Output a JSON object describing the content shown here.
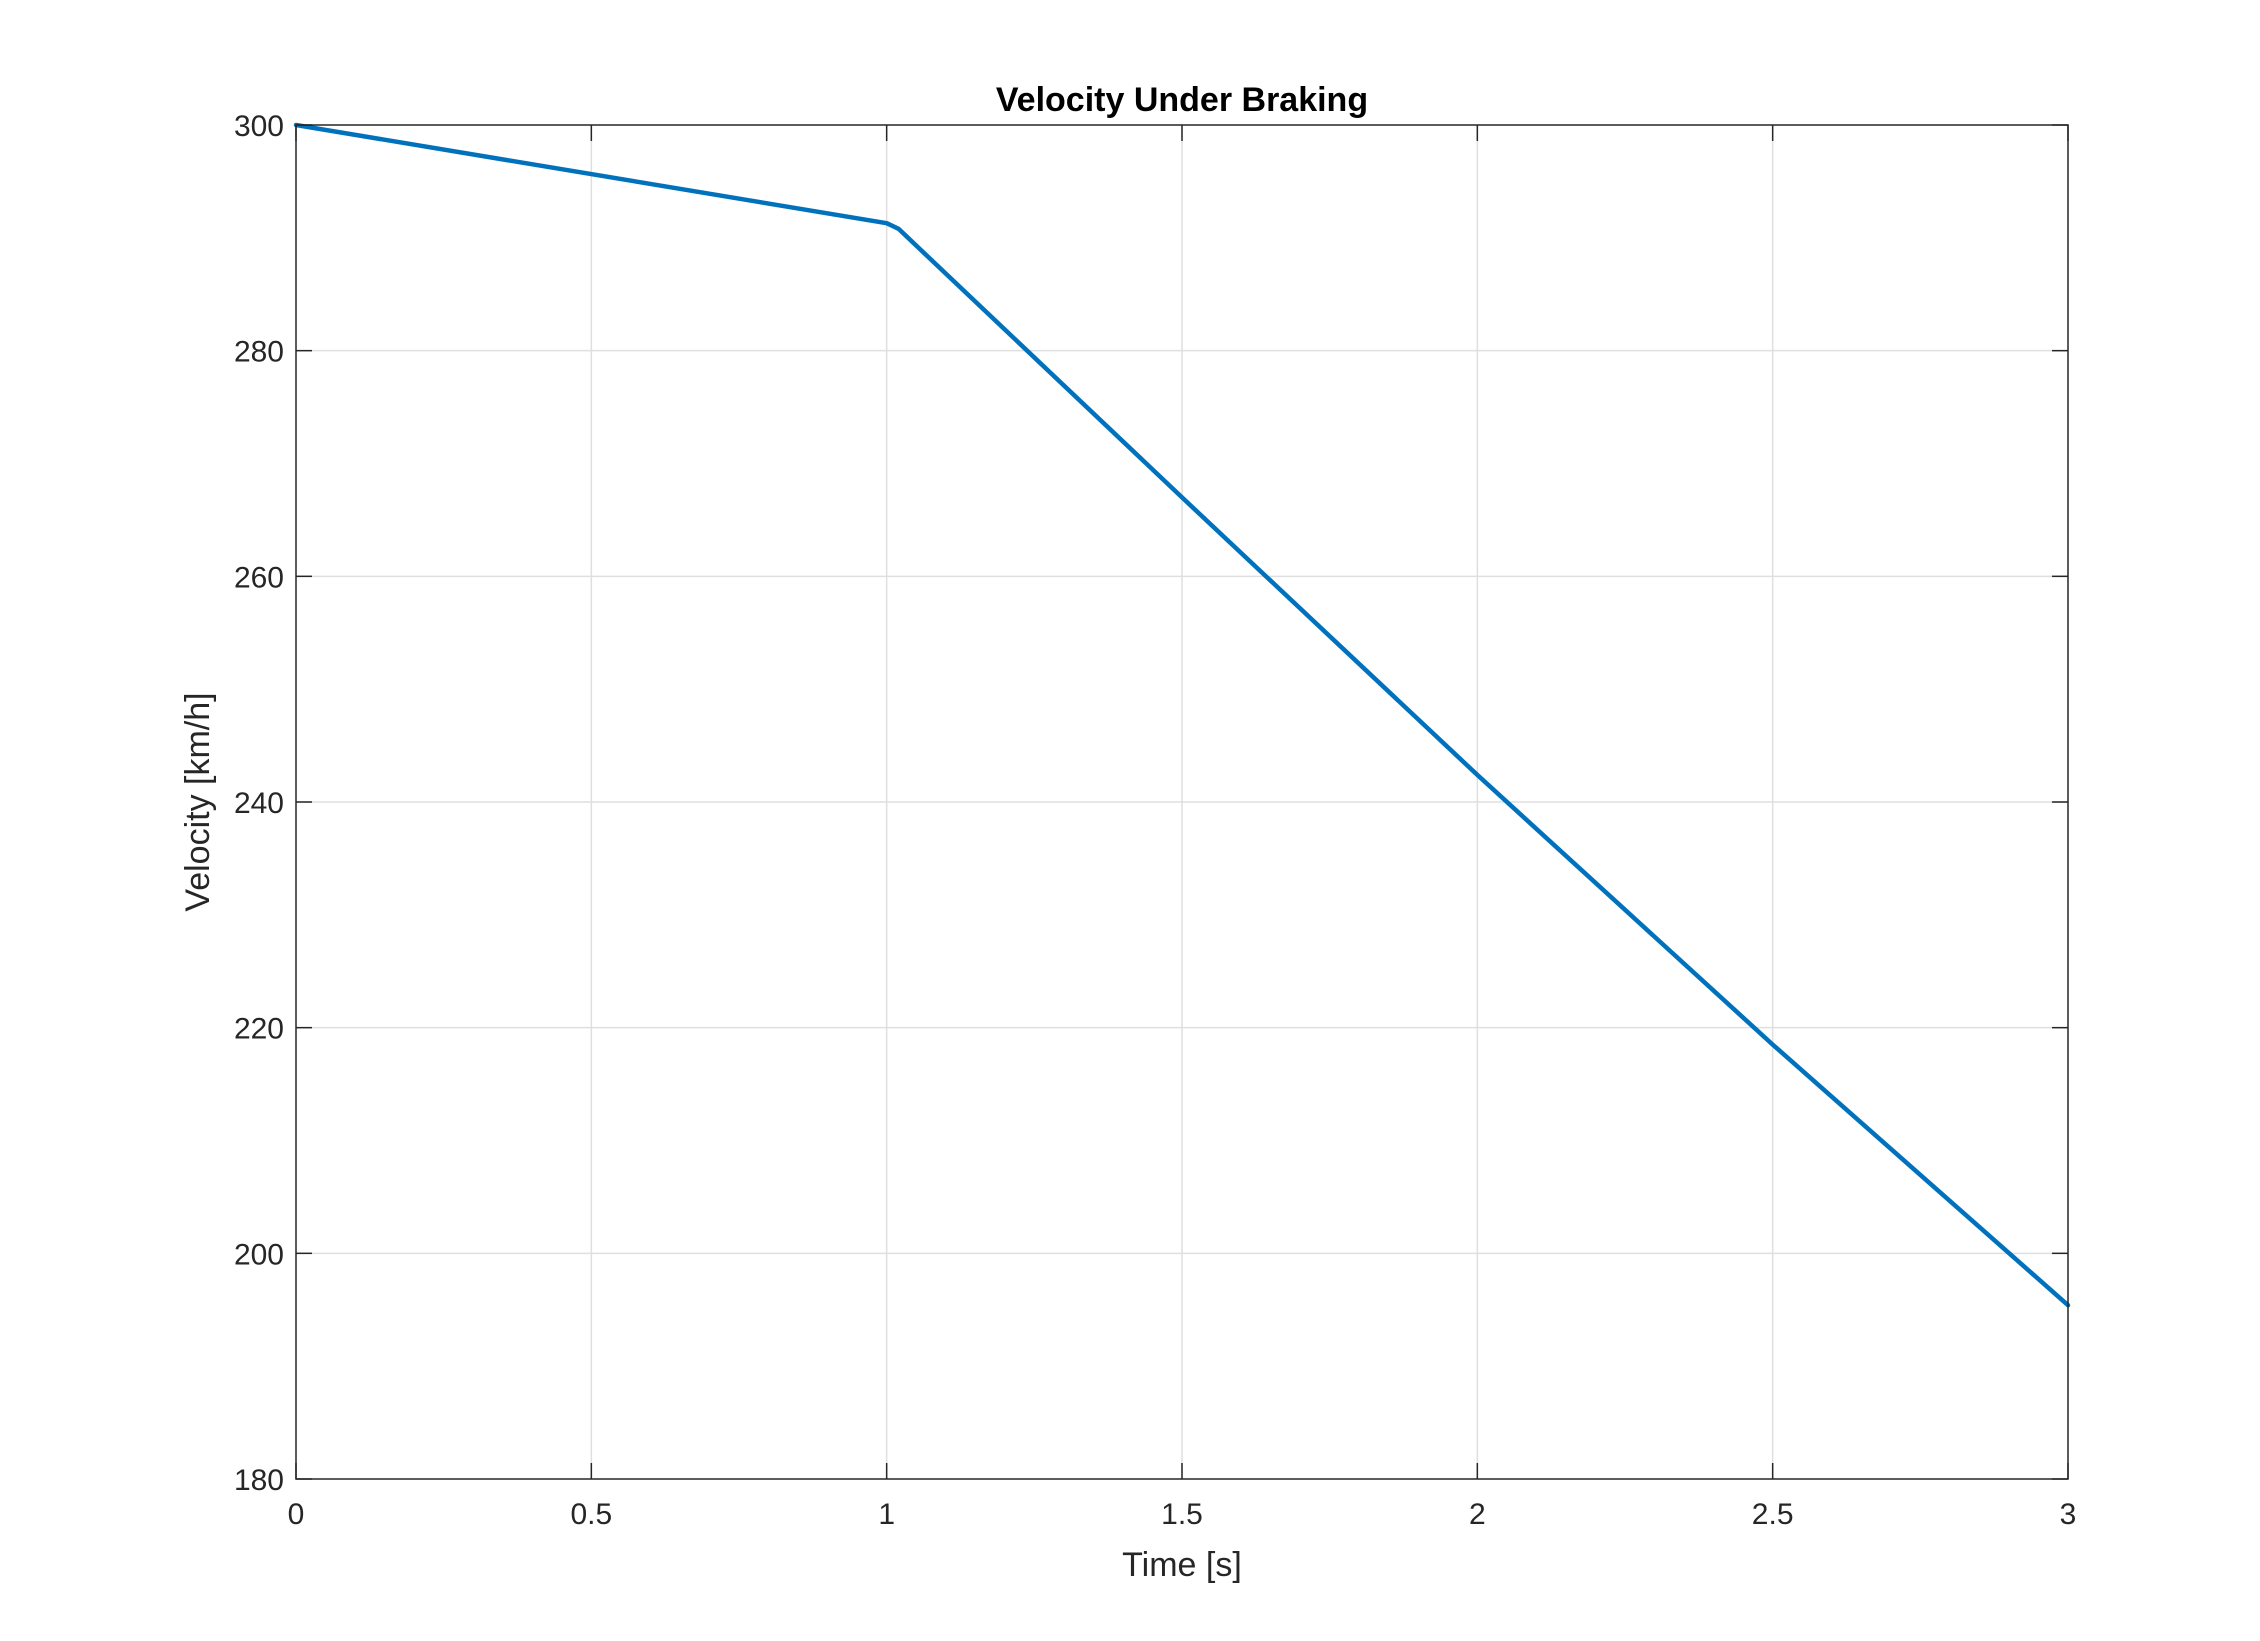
{
  "chart_data": {
    "type": "line",
    "title": "Velocity Under Braking",
    "xlabel": "Time [s]",
    "ylabel": "Velocity [km/h]",
    "xlim": [
      0,
      3
    ],
    "ylim": [
      180,
      300
    ],
    "grid": true,
    "xticks": [
      0,
      0.5,
      1,
      1.5,
      2,
      2.5,
      3
    ],
    "xtick_labels": [
      "0",
      "0.5",
      "1",
      "1.5",
      "2",
      "2.5",
      "3"
    ],
    "yticks": [
      180,
      200,
      220,
      240,
      260,
      280,
      300
    ],
    "ytick_labels": [
      "180",
      "200",
      "220",
      "240",
      "260",
      "280",
      "300"
    ],
    "series": [
      {
        "color": "#0072BD",
        "x": [
          0,
          1,
          1.02,
          1.5,
          2,
          2.5,
          3
        ],
        "y": [
          300,
          291.3,
          290.8,
          267.0,
          242.4,
          218.5,
          195.4
        ]
      }
    ]
  }
}
